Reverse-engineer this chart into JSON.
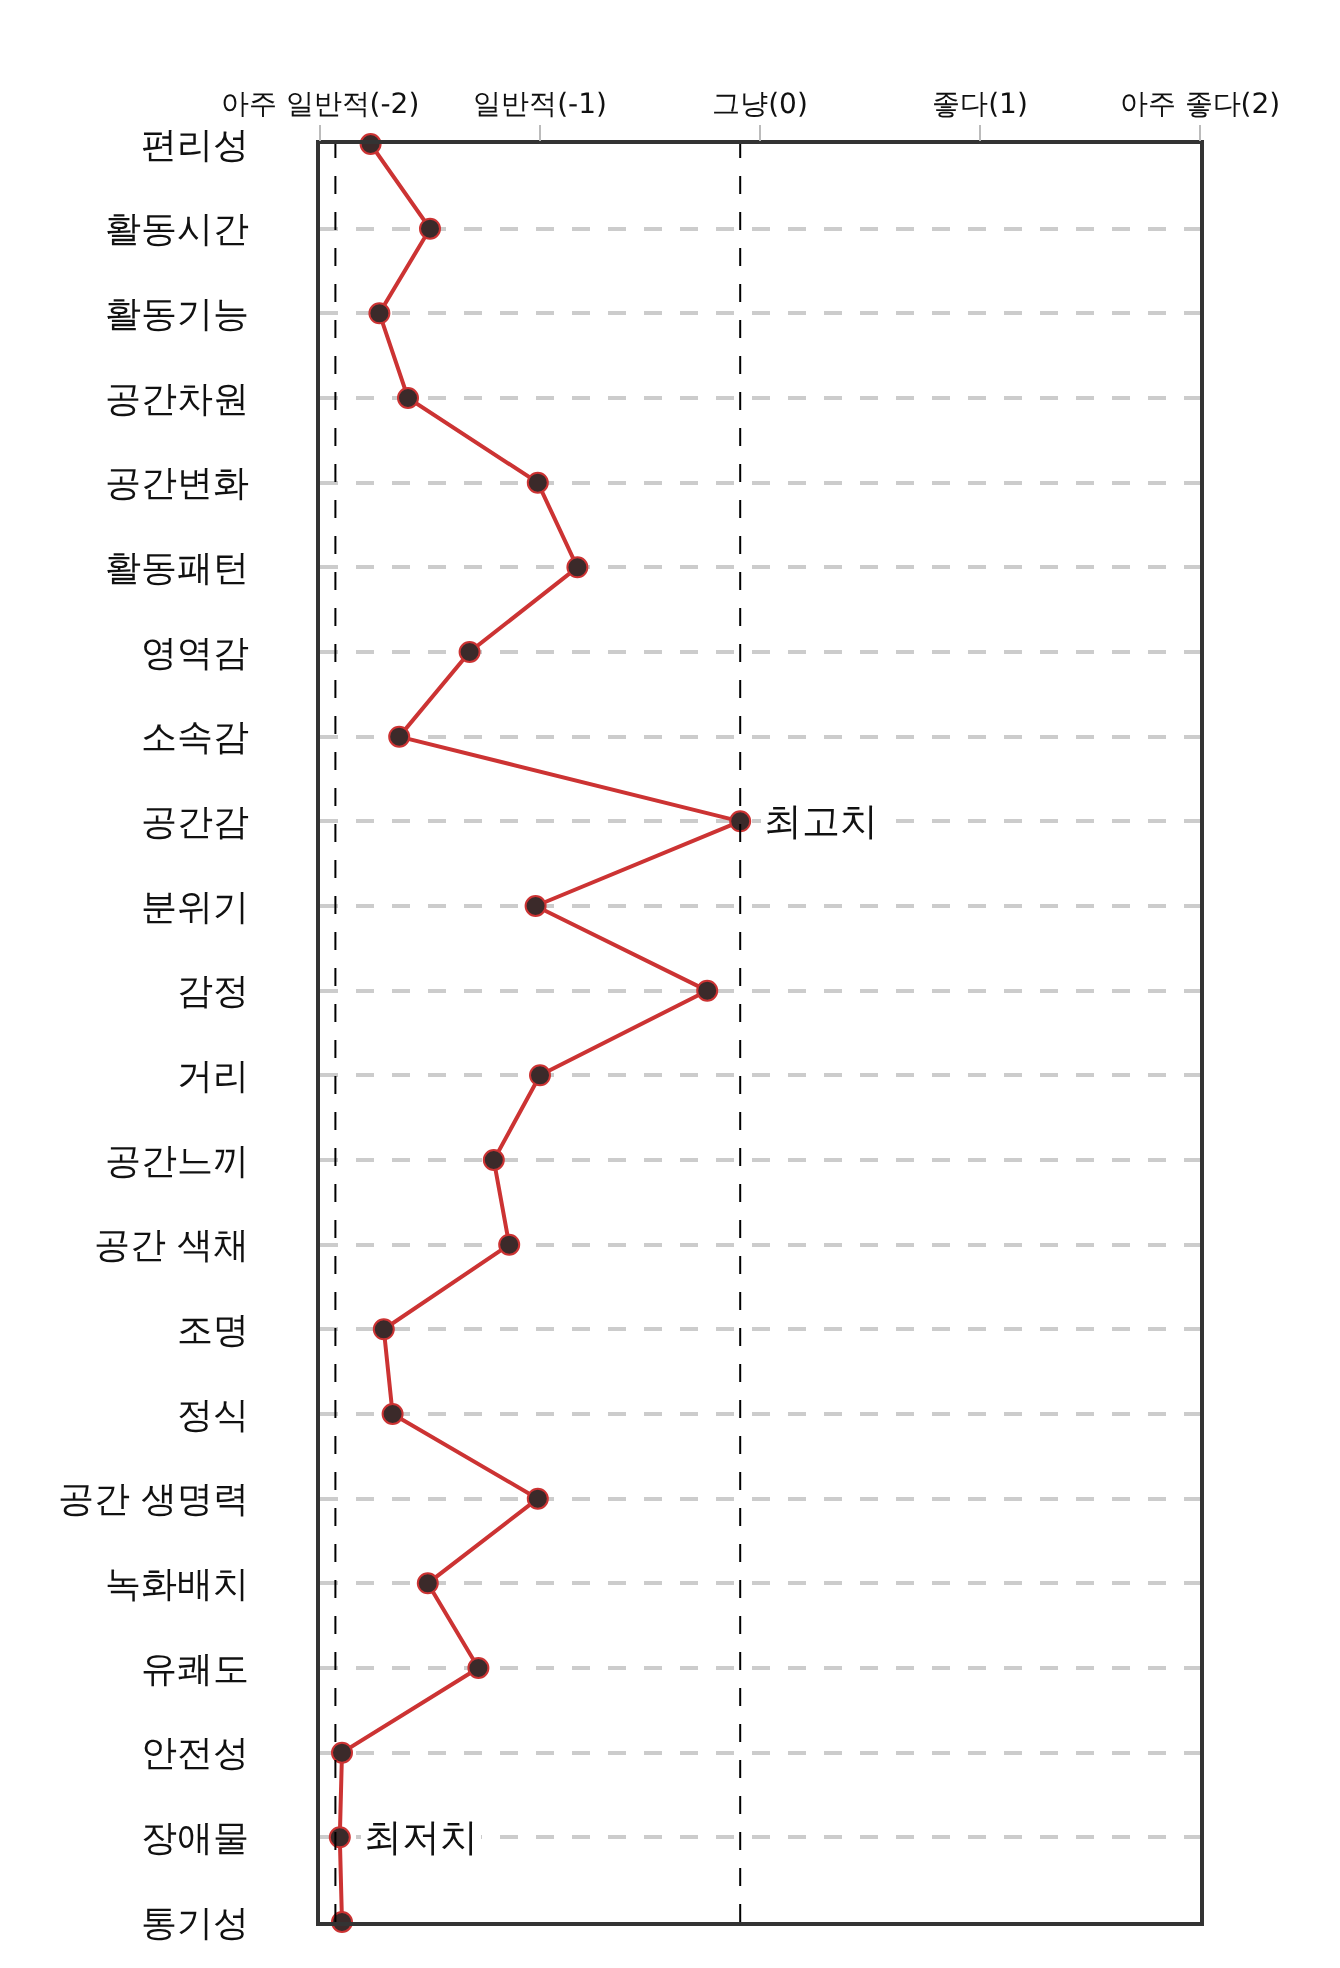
{
  "chart_data": {
    "type": "line",
    "orientation": "horizontal",
    "categories": [
      "편리성",
      "활동시간",
      "활동기능",
      "공간차원",
      "공간변화",
      "활동패턴",
      "영역감",
      "소속감",
      "공간감",
      "분위기",
      "감정",
      "거리",
      "공간느끼",
      "공간 색채",
      "조명",
      "정식",
      "공간 생명력",
      "녹화배치",
      "유쾌도",
      "안전성",
      "장애물",
      "통기성"
    ],
    "series": [
      {
        "color": "#cc3333",
        "values": [
          -1.77,
          -1.5,
          -1.73,
          -1.6,
          -1.01,
          -0.83,
          -1.32,
          -1.64,
          -0.09,
          -1.02,
          -0.24,
          -1.0,
          -1.21,
          -1.14,
          -1.71,
          -1.67,
          -1.01,
          -1.51,
          -1.28,
          -1.9,
          -1.91,
          -1.9
        ]
      }
    ],
    "xlim": [
      -2,
      2
    ],
    "xticks": [
      {
        "value": -2,
        "label": "아주 일반적(-2)"
      },
      {
        "value": -1,
        "label": "일반적(-1)"
      },
      {
        "value": 0,
        "label": "그냥(0)"
      },
      {
        "value": 1,
        "label": "좋다(1)"
      },
      {
        "value": 2,
        "label": "아주 좋다(2)"
      }
    ],
    "ref_lines": [
      {
        "axis": "x",
        "value": -0.09,
        "line_style": "dashed",
        "color": "#000000"
      },
      {
        "axis": "x",
        "value": -1.93,
        "line_style": "dashed",
        "color": "#000000"
      }
    ],
    "annotations": [
      {
        "text": "최고치",
        "x": -0.09,
        "y": "공간감"
      },
      {
        "text": "최저치",
        "x": -1.91,
        "y": "장애물"
      }
    ],
    "grid": "y",
    "marker": "circle",
    "line_style": "solid",
    "legend": false
  }
}
